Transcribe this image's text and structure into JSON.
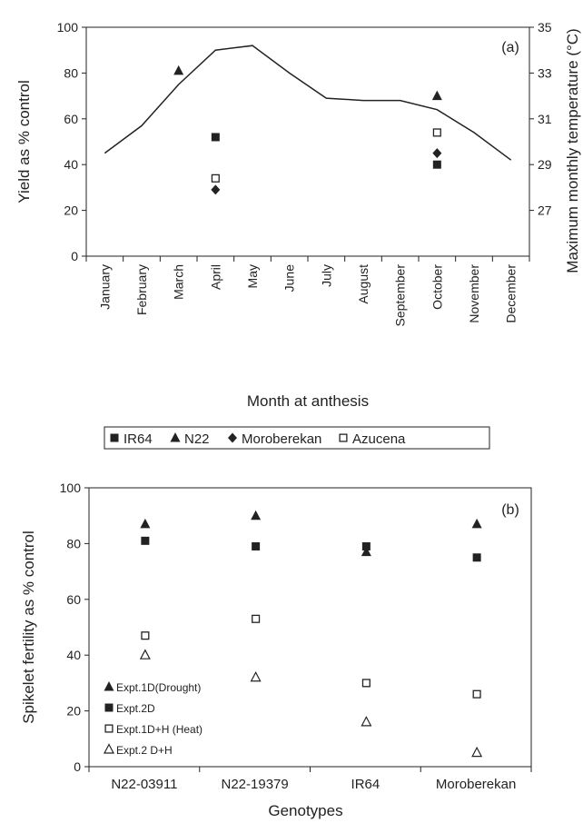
{
  "chart_data": [
    {
      "id": "a",
      "panel_label": "(a)",
      "type": "line+scatter",
      "xlabel": "Month at anthesis",
      "ylabel": "Yield as % control",
      "y2label": "Maximum monthly temperature (°C)",
      "ylim": [
        0,
        100
      ],
      "yticks": [
        0,
        20,
        40,
        60,
        80,
        100
      ],
      "y2lim": [
        25,
        35
      ],
      "y2ticks": [
        27,
        29,
        31,
        33,
        35
      ],
      "categories": [
        "January",
        "February",
        "March",
        "April",
        "May",
        "June",
        "July",
        "August",
        "September",
        "October",
        "November",
        "December"
      ],
      "temperature_line": [
        29.5,
        30.7,
        32.5,
        34.0,
        34.2,
        33.0,
        31.9,
        31.8,
        31.8,
        31.4,
        30.4,
        29.2
      ],
      "legend_position": "bottom",
      "series": [
        {
          "name": "IR64",
          "marker": "square-filled",
          "points": [
            {
              "x": "April",
              "y": 52
            },
            {
              "x": "October",
              "y": 40
            }
          ]
        },
        {
          "name": "N22",
          "marker": "triangle-filled",
          "points": [
            {
              "x": "March",
              "y": 81
            },
            {
              "x": "October",
              "y": 70
            }
          ]
        },
        {
          "name": "Moroberekan",
          "marker": "diamond-filled",
          "points": [
            {
              "x": "April",
              "y": 29
            },
            {
              "x": "October",
              "y": 45
            }
          ]
        },
        {
          "name": "Azucena",
          "marker": "square-open",
          "points": [
            {
              "x": "April",
              "y": 34
            },
            {
              "x": "October",
              "y": 54
            }
          ]
        }
      ]
    },
    {
      "id": "b",
      "panel_label": "(b)",
      "type": "scatter",
      "xlabel": "Genotypes",
      "ylabel": "Spikelet fertility as % control",
      "ylim": [
        0,
        100
      ],
      "yticks": [
        0,
        20,
        40,
        60,
        80,
        100
      ],
      "categories": [
        "N22-03911",
        "N22-19379",
        "IR64",
        "Moroberekan"
      ],
      "legend_position": "lower-left",
      "series": [
        {
          "name": "Expt.1D(Drought)",
          "marker": "triangle-filled",
          "values": [
            87,
            90,
            77,
            87
          ]
        },
        {
          "name": "Expt.2D",
          "marker": "square-filled",
          "values": [
            81,
            79,
            79,
            75
          ]
        },
        {
          "name": "Expt.1D+H (Heat)",
          "marker": "square-open",
          "values": [
            47,
            53,
            30,
            26
          ]
        },
        {
          "name": "Expt.2 D+H",
          "marker": "triangle-open",
          "values": [
            40,
            32,
            16,
            5
          ]
        }
      ]
    }
  ]
}
